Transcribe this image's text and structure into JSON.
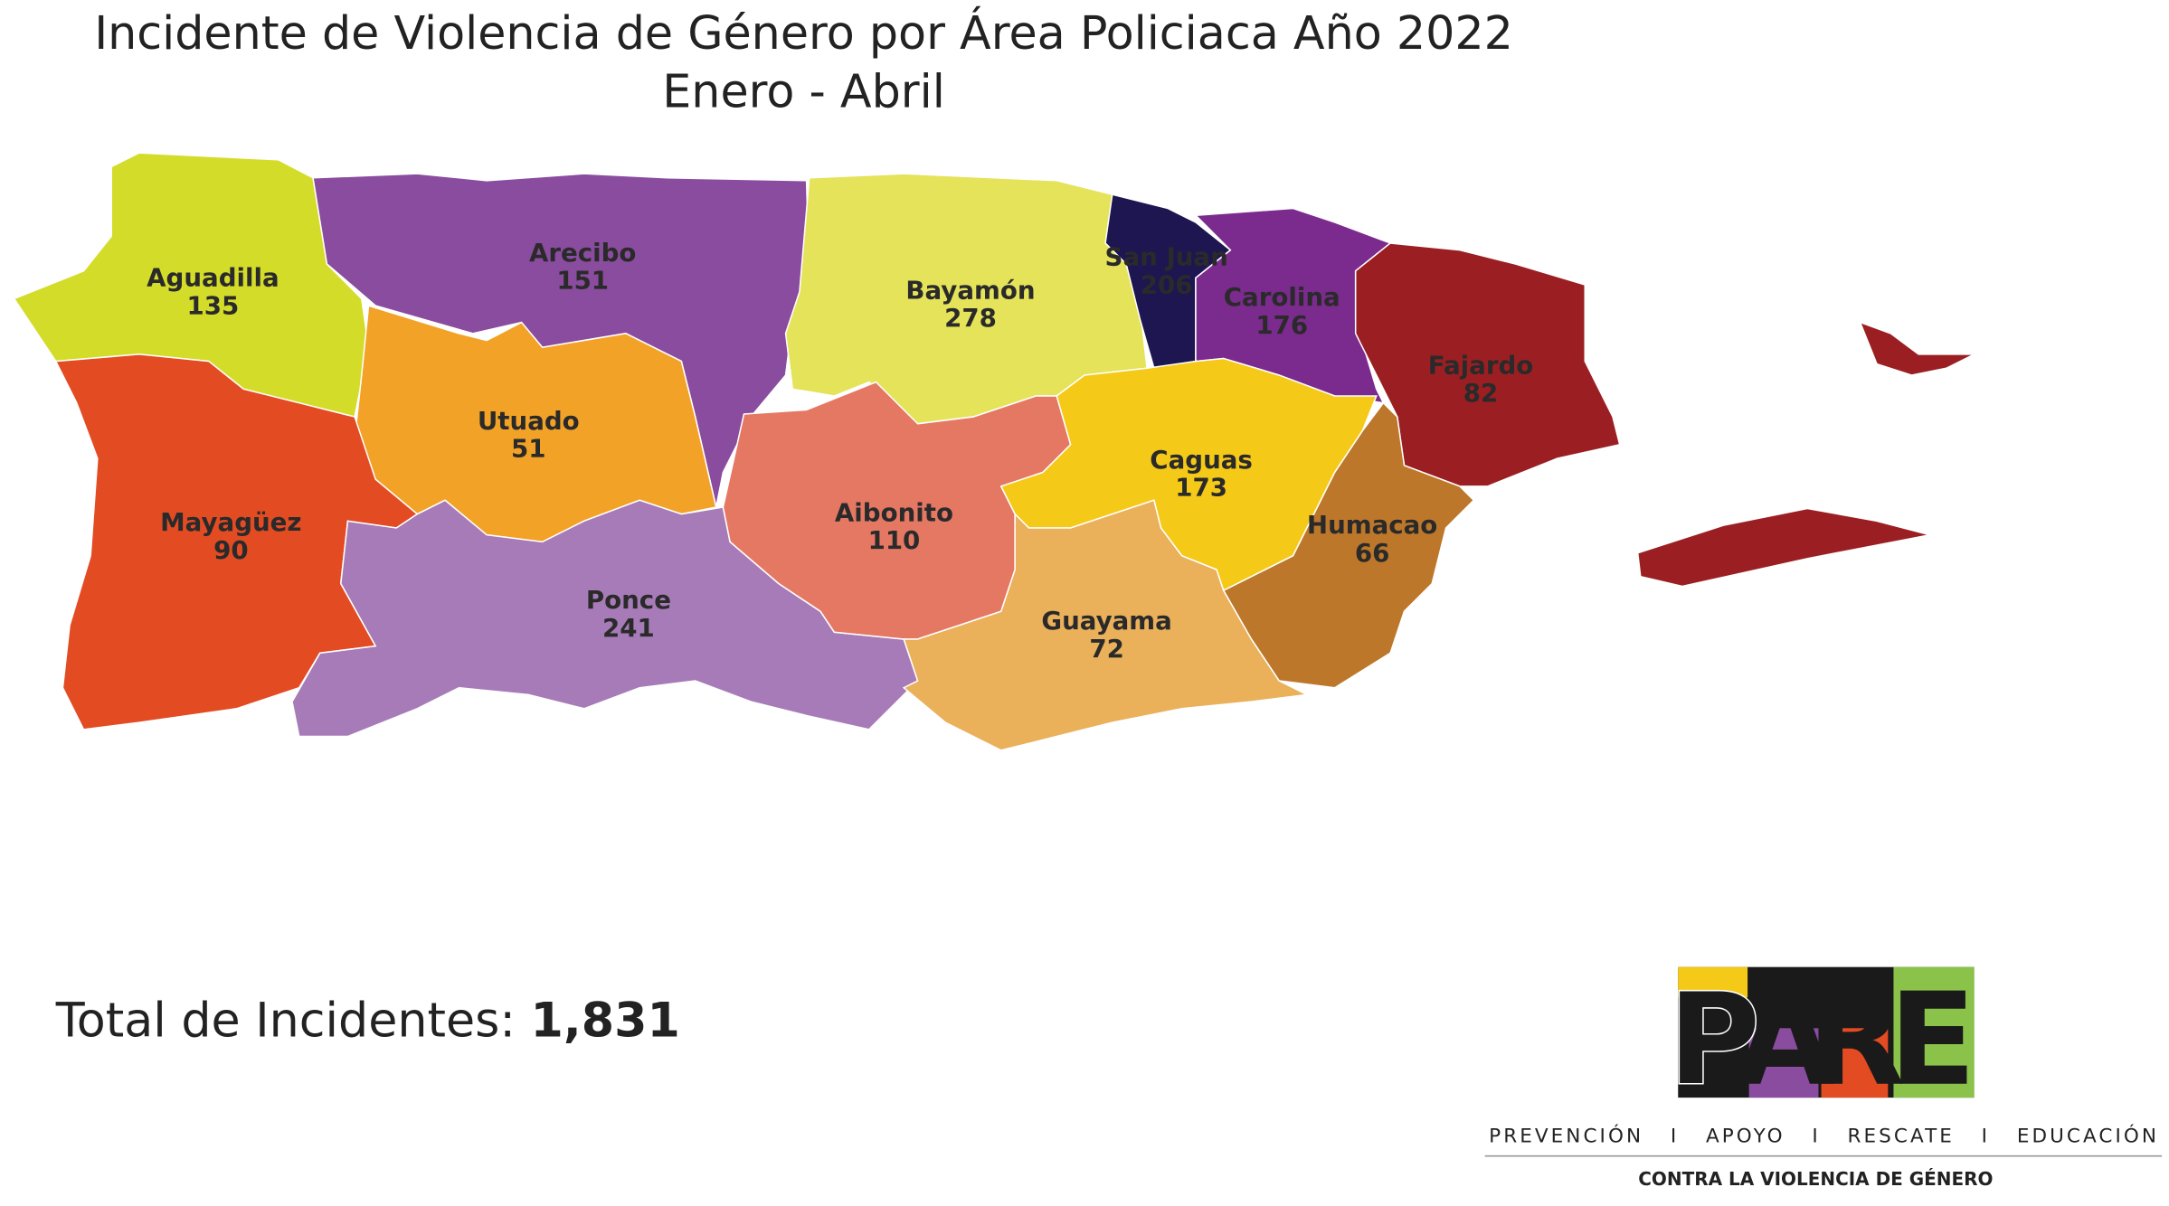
{
  "header": {
    "title": "Incidente de Violencia de Género por Área Policiaca Año 2022",
    "subtitle": "Enero - Abril"
  },
  "regions": [
    {
      "name": "Aguadilla",
      "value": 135,
      "color": "#d4dc2a"
    },
    {
      "name": "Arecibo",
      "value": 151,
      "color": "#8a4c9e"
    },
    {
      "name": "Bayamón",
      "value": 278,
      "color": "#e4e35a"
    },
    {
      "name": "San Juan",
      "value": 206,
      "color": "#1e1650"
    },
    {
      "name": "Carolina",
      "value": 176,
      "color": "#7b2a8e"
    },
    {
      "name": "Fajardo",
      "value": 82,
      "color": "#9b1f22"
    },
    {
      "name": "Utuado",
      "value": 51,
      "color": "#f2a227"
    },
    {
      "name": "Mayagüez",
      "value": 90,
      "color": "#e34b23"
    },
    {
      "name": "Ponce",
      "value": 241,
      "color": "#a77bb8"
    },
    {
      "name": "Aibonito",
      "value": 110,
      "color": "#e57863"
    },
    {
      "name": "Caguas",
      "value": 173,
      "color": "#f5c917"
    },
    {
      "name": "Humacao",
      "value": 66,
      "color": "#bd772a"
    },
    {
      "name": "Guayama",
      "value": 72,
      "color": "#eab05a"
    }
  ],
  "total": {
    "label": "Total de Incidentes:",
    "value": "1,831"
  },
  "logo": {
    "letters": [
      "P",
      "A",
      "R",
      "E"
    ],
    "tagline": "PREVENCIÓN   I   APOYO   I   RESCATE   I   EDUCACIÓN",
    "motto": "CONTRA LA VIOLENCIA DE GÉNERO"
  }
}
